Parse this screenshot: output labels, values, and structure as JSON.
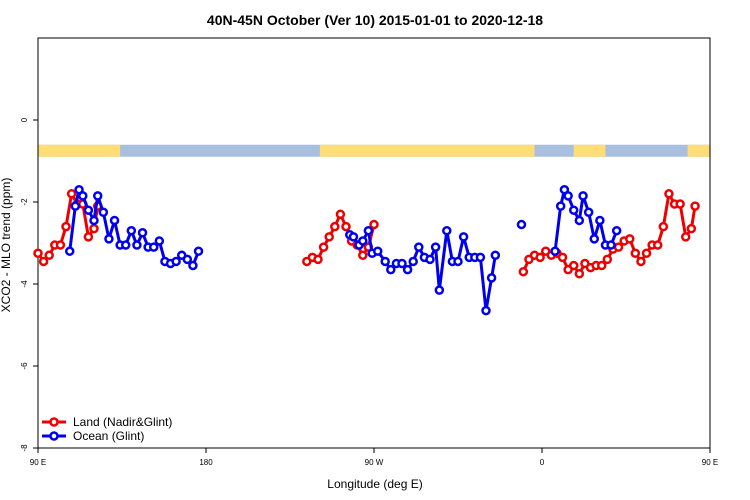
{
  "chart_data": {
    "type": "line",
    "title": "40N-45N October (Ver 10)   2015-01-01 to 2020-12-18",
    "xlabel": "Longitude (deg E)",
    "ylabel": "XCO2 - MLO trend (ppm)",
    "xlim": [
      90,
      450
    ],
    "ylim": [
      -8,
      2
    ],
    "x_ticks": [
      {
        "value": 90,
        "label": "90 E"
      },
      {
        "value": 180,
        "label": "180"
      },
      {
        "value": 270,
        "label": "90 W"
      },
      {
        "value": 360,
        "label": "0"
      },
      {
        "value": 450,
        "label": "90 E"
      },
      {
        "value": 540,
        "label": "180"
      }
    ],
    "y_ticks": [
      {
        "value": 0,
        "label": "0"
      },
      {
        "value": -2,
        "label": "-2"
      },
      {
        "value": -4,
        "label": "-4"
      },
      {
        "value": -6,
        "label": "-6"
      },
      {
        "value": -8,
        "label": "-8"
      }
    ],
    "legend": {
      "position": "bottom-left",
      "entries": [
        {
          "label": "Land (Nadir&Glint)",
          "color": "#ee0000"
        },
        {
          "label": "Ocean (Glint)",
          "color": "#0000ee"
        }
      ]
    },
    "landmask": {
      "y_center": -0.75,
      "land_color": "#ffdd77",
      "ocean_color": "#a8bfe0",
      "land_ranges": [
        [
          90,
          134
        ],
        [
          241,
          356
        ],
        [
          377,
          394
        ],
        [
          438,
          521
        ],
        [
          535,
          540
        ]
      ]
    },
    "series": [
      {
        "name": "Land (Nadir&Glint)",
        "color": "#ee0000",
        "segments": [
          [
            [
              90,
              -3.25
            ],
            [
              93,
              -3.45
            ],
            [
              96,
              -3.3
            ],
            [
              99,
              -3.05
            ],
            [
              102,
              -3.05
            ],
            [
              105,
              -2.6
            ],
            [
              108,
              -1.8
            ],
            [
              111,
              -2.05
            ],
            [
              114,
              -2.05
            ],
            [
              117,
              -2.85
            ],
            [
              120,
              -2.65
            ],
            [
              122,
              -2.1
            ]
          ],
          [
            [
              234,
              -3.45
            ],
            [
              237,
              -3.35
            ],
            [
              240,
              -3.4
            ],
            [
              243,
              -3.1
            ],
            [
              246,
              -2.85
            ],
            [
              249,
              -2.6
            ],
            [
              252,
              -2.3
            ],
            [
              255,
              -2.6
            ],
            [
              258,
              -2.95
            ],
            [
              261,
              -3.05
            ],
            [
              264,
              -3.3
            ],
            [
              267,
              -3.1
            ],
            [
              270,
              -2.55
            ]
          ],
          [
            [
              350,
              -3.7
            ],
            [
              353,
              -3.4
            ],
            [
              356,
              -3.3
            ],
            [
              359,
              -3.35
            ],
            [
              362,
              -3.2
            ],
            [
              365,
              -3.3
            ],
            [
              368,
              -3.25
            ],
            [
              371,
              -3.35
            ],
            [
              374,
              -3.65
            ],
            [
              377,
              -3.55
            ],
            [
              380,
              -3.75
            ],
            [
              383,
              -3.5
            ],
            [
              386,
              -3.6
            ],
            [
              389,
              -3.55
            ],
            [
              392,
              -3.55
            ],
            [
              395,
              -3.4
            ],
            [
              398,
              -3.15
            ],
            [
              401,
              -3.1
            ],
            [
              404,
              -2.95
            ],
            [
              407,
              -2.9
            ],
            [
              410,
              -3.25
            ],
            [
              413,
              -3.45
            ],
            [
              416,
              -3.25
            ],
            [
              419,
              -3.05
            ],
            [
              422,
              -3.05
            ],
            [
              425,
              -2.6
            ],
            [
              428,
              -1.8
            ],
            [
              431,
              -2.05
            ],
            [
              434,
              -2.05
            ],
            [
              437,
              -2.85
            ],
            [
              440,
              -2.65
            ],
            [
              442,
              -2.1
            ]
          ]
        ]
      },
      {
        "name": "Ocean (Glint)",
        "color": "#0000ee",
        "segments": [
          [
            [
              107,
              -3.2
            ],
            [
              110,
              -2.1
            ],
            [
              112,
              -1.7
            ],
            [
              114,
              -1.85
            ],
            [
              117,
              -2.2
            ],
            [
              120,
              -2.45
            ],
            [
              122,
              -1.85
            ],
            [
              125,
              -2.25
            ],
            [
              128,
              -2.9
            ],
            [
              131,
              -2.45
            ],
            [
              134,
              -3.05
            ],
            [
              137,
              -3.05
            ],
            [
              140,
              -2.7
            ],
            [
              143,
              -3.05
            ],
            [
              146,
              -2.75
            ],
            [
              149,
              -3.1
            ],
            [
              152,
              -3.1
            ],
            [
              155,
              -2.95
            ],
            [
              158,
              -3.45
            ],
            [
              161,
              -3.5
            ],
            [
              164,
              -3.45
            ],
            [
              167,
              -3.3
            ],
            [
              170,
              -3.4
            ],
            [
              173,
              -3.55
            ],
            [
              176,
              -3.2
            ]
          ],
          [
            [
              257,
              -2.8
            ],
            [
              259,
              -2.85
            ],
            [
              262,
              -3.05
            ],
            [
              264,
              -2.95
            ],
            [
              267,
              -2.7
            ],
            [
              269,
              -3.25
            ],
            [
              272,
              -3.2
            ],
            [
              276,
              -3.45
            ],
            [
              279,
              -3.65
            ],
            [
              282,
              -3.5
            ],
            [
              285,
              -3.5
            ],
            [
              288,
              -3.65
            ],
            [
              291,
              -3.45
            ],
            [
              294,
              -3.1
            ],
            [
              297,
              -3.35
            ],
            [
              300,
              -3.4
            ],
            [
              303,
              -3.1
            ],
            [
              305,
              -4.15
            ],
            [
              309,
              -2.7
            ],
            [
              312,
              -3.45
            ],
            [
              315,
              -3.45
            ],
            [
              318,
              -2.85
            ],
            [
              321,
              -3.35
            ],
            [
              324,
              -3.35
            ],
            [
              327,
              -3.35
            ],
            [
              330,
              -4.65
            ],
            [
              333,
              -3.85
            ],
            [
              335,
              -3.3
            ]
          ],
          [
            [
              367,
              -3.2
            ],
            [
              370,
              -2.1
            ],
            [
              372,
              -1.7
            ],
            [
              374,
              -1.85
            ],
            [
              377,
              -2.2
            ],
            [
              380,
              -2.45
            ],
            [
              382,
              -1.85
            ],
            [
              385,
              -2.25
            ],
            [
              388,
              -2.9
            ],
            [
              391,
              -2.45
            ],
            [
              394,
              -3.05
            ],
            [
              397,
              -3.05
            ],
            [
              400,
              -2.7
            ]
          ]
        ],
        "isolated_points": [
          [
            349,
            -2.55
          ]
        ]
      }
    ]
  }
}
